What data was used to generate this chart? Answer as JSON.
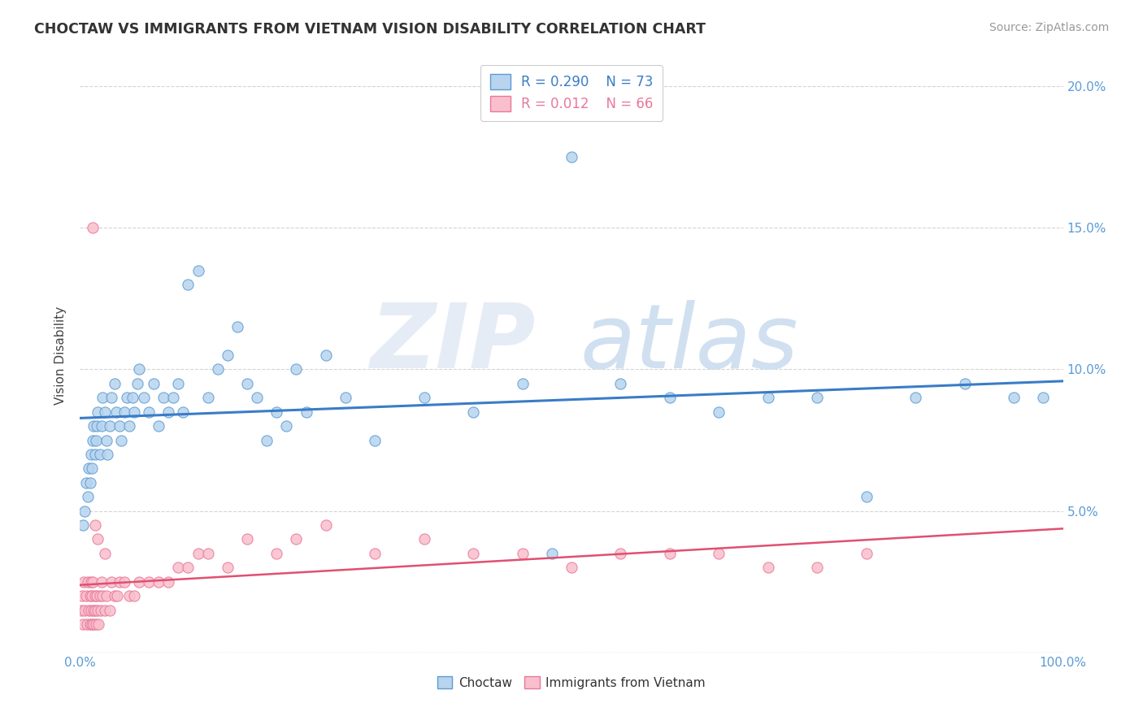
{
  "title": "CHOCTAW VS IMMIGRANTS FROM VIETNAM VISION DISABILITY CORRELATION CHART",
  "source": "Source: ZipAtlas.com",
  "ylabel": "Vision Disability",
  "xlim": [
    0,
    100
  ],
  "ylim": [
    0,
    21
  ],
  "yticks": [
    0,
    5,
    10,
    15,
    20
  ],
  "ytick_labels": [
    "",
    "5.0%",
    "10.0%",
    "15.0%",
    "20.0%"
  ],
  "xticks": [
    0,
    10,
    20,
    30,
    40,
    50,
    60,
    70,
    80,
    90,
    100
  ],
  "choctaw_color": "#b8d4ee",
  "vietnam_color": "#f9bfcc",
  "choctaw_edge_color": "#5b9bd5",
  "vietnam_edge_color": "#e8789a",
  "choctaw_line_color": "#3a7cc7",
  "vietnam_line_color": "#e05070",
  "tick_color": "#5b9bd5",
  "legend_r1": "R = 0.290",
  "legend_n1": "N = 73",
  "legend_r2": "R = 0.012",
  "legend_n2": "N = 66",
  "choctaw_x": [
    0.3,
    0.5,
    0.6,
    0.8,
    0.9,
    1.0,
    1.1,
    1.2,
    1.3,
    1.4,
    1.5,
    1.6,
    1.7,
    1.8,
    2.0,
    2.2,
    2.3,
    2.5,
    2.7,
    2.8,
    3.0,
    3.2,
    3.5,
    3.7,
    4.0,
    4.2,
    4.5,
    4.8,
    5.0,
    5.3,
    5.5,
    5.8,
    6.0,
    6.5,
    7.0,
    7.5,
    8.0,
    8.5,
    9.0,
    9.5,
    10.0,
    10.5,
    11.0,
    12.0,
    13.0,
    14.0,
    15.0,
    16.0,
    17.0,
    18.0,
    19.0,
    20.0,
    21.0,
    22.0,
    23.0,
    25.0,
    27.0,
    30.0,
    35.0,
    40.0,
    45.0,
    50.0,
    55.0,
    60.0,
    65.0,
    70.0,
    75.0,
    80.0,
    85.0,
    90.0,
    95.0,
    98.0,
    48.0
  ],
  "choctaw_y": [
    4.5,
    5.0,
    6.0,
    5.5,
    6.5,
    6.0,
    7.0,
    6.5,
    7.5,
    8.0,
    7.0,
    7.5,
    8.0,
    8.5,
    7.0,
    8.0,
    9.0,
    8.5,
    7.5,
    7.0,
    8.0,
    9.0,
    9.5,
    8.5,
    8.0,
    7.5,
    8.5,
    9.0,
    8.0,
    9.0,
    8.5,
    9.5,
    10.0,
    9.0,
    8.5,
    9.5,
    8.0,
    9.0,
    8.5,
    9.0,
    9.5,
    8.5,
    13.0,
    13.5,
    9.0,
    10.0,
    10.5,
    11.5,
    9.5,
    9.0,
    7.5,
    8.5,
    8.0,
    10.0,
    8.5,
    10.5,
    9.0,
    7.5,
    9.0,
    8.5,
    9.5,
    17.5,
    9.5,
    9.0,
    8.5,
    9.0,
    9.0,
    5.5,
    9.0,
    9.5,
    9.0,
    9.0,
    3.5
  ],
  "vietnam_x": [
    0.1,
    0.2,
    0.3,
    0.4,
    0.5,
    0.6,
    0.7,
    0.8,
    0.9,
    1.0,
    1.0,
    1.1,
    1.1,
    1.2,
    1.2,
    1.3,
    1.4,
    1.4,
    1.5,
    1.5,
    1.6,
    1.7,
    1.8,
    1.9,
    2.0,
    2.1,
    2.2,
    2.3,
    2.5,
    2.7,
    3.0,
    3.2,
    3.5,
    3.8,
    4.0,
    4.5,
    5.0,
    5.5,
    6.0,
    7.0,
    8.0,
    9.0,
    10.0,
    11.0,
    12.0,
    13.0,
    15.0,
    17.0,
    20.0,
    22.0,
    25.0,
    30.0,
    35.0,
    40.0,
    45.0,
    50.0,
    55.0,
    60.0,
    65.0,
    70.0,
    75.0,
    80.0,
    1.3,
    1.5,
    1.8,
    2.5
  ],
  "vietnam_y": [
    1.5,
    2.0,
    1.0,
    2.5,
    1.5,
    2.0,
    1.0,
    2.5,
    1.5,
    2.0,
    1.0,
    2.5,
    1.5,
    2.0,
    1.0,
    2.5,
    1.5,
    1.0,
    2.0,
    1.5,
    1.0,
    2.0,
    1.5,
    1.0,
    2.0,
    1.5,
    2.5,
    2.0,
    1.5,
    2.0,
    1.5,
    2.5,
    2.0,
    2.0,
    2.5,
    2.5,
    2.0,
    2.0,
    2.5,
    2.5,
    2.5,
    2.5,
    3.0,
    3.0,
    3.5,
    3.5,
    3.0,
    4.0,
    3.5,
    4.0,
    4.5,
    3.5,
    4.0,
    3.5,
    3.5,
    3.0,
    3.5,
    3.5,
    3.5,
    3.0,
    3.0,
    3.5,
    15.0,
    4.5,
    4.0,
    3.5
  ]
}
